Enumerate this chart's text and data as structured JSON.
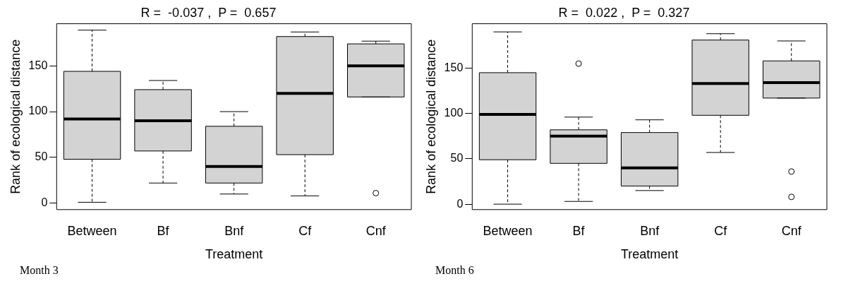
{
  "chart_data": [
    {
      "type": "box",
      "title": "R =  -0.037 ,  P =  0.657",
      "xlabel": "Treatment",
      "ylabel": "Rank of ecological distance",
      "categories": [
        "Between",
        "Bf",
        "Bnf",
        "Cf",
        "Cnf"
      ],
      "color": "#d3d3d3",
      "boxes": [
        {
          "low": 1,
          "q1": 48,
          "median": 92,
          "q3": 144,
          "high": 189
        },
        {
          "low": 22,
          "q1": 57,
          "median": 90,
          "q3": 124,
          "high": 134
        },
        {
          "low": 10,
          "q1": 22,
          "median": 40,
          "q3": 84,
          "high": 100
        },
        {
          "low": 8,
          "q1": 53,
          "median": 120,
          "q3": 182,
          "high": 187
        },
        {
          "low": 116,
          "q1": 116,
          "median": 150,
          "q3": 174,
          "high": 177,
          "outliers": [
            11
          ]
        }
      ],
      "ylim": [
        -7,
        196
      ],
      "yticks": [
        0,
        50,
        100,
        150
      ],
      "grid": false,
      "annotations": [
        "Month 3"
      ]
    },
    {
      "type": "box",
      "title": "R =  0.022 ,  P =  0.327",
      "xlabel": "Treatment",
      "ylabel": "Rank of ecological distance",
      "categories": [
        "Between",
        "Bf",
        "Bnf",
        "Cf",
        "Cnf"
      ],
      "color": "#d3d3d3",
      "boxes": [
        {
          "low": 0,
          "q1": 49,
          "median": 99,
          "q3": 145,
          "high": 190
        },
        {
          "low": 3,
          "q1": 45,
          "median": 75,
          "q3": 82,
          "high": 96,
          "outliers": [
            155
          ]
        },
        {
          "low": 15,
          "q1": 20,
          "median": 40,
          "q3": 79,
          "high": 93
        },
        {
          "low": 57,
          "q1": 98,
          "median": 133,
          "q3": 181,
          "high": 188
        },
        {
          "low": 117,
          "q1": 117,
          "median": 134,
          "q3": 158,
          "high": 180,
          "outliers": [
            36,
            8
          ]
        }
      ],
      "ylim": [
        -6,
        199
      ],
      "yticks": [
        0,
        50,
        100,
        150
      ],
      "grid": false,
      "annotations": [
        "Month 6"
      ]
    }
  ]
}
